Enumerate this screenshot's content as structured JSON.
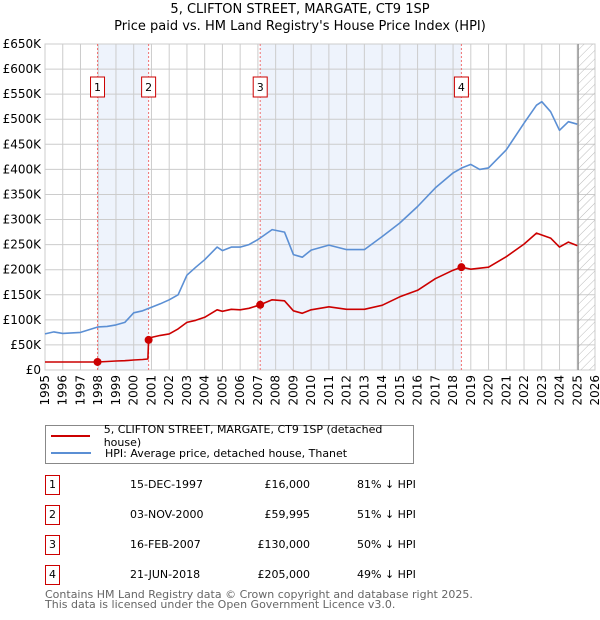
{
  "title": "5, CLIFTON STREET, MARGATE, CT9 1SP",
  "subtitle": "Price paid vs. HM Land Registry's House Price Index (HPI)",
  "colors": {
    "property": "#cc0000",
    "hpi": "#5b8fd4",
    "shade": "#eef3fc"
  },
  "chart_data": {
    "type": "line",
    "title": "5, CLIFTON STREET, MARGATE, CT9 1SP",
    "subtitle": "Price paid vs. HM Land Registry's House Price Index (HPI)",
    "xlim": [
      1995,
      2026
    ],
    "ylim": [
      0,
      650000
    ],
    "yticks": [
      0,
      50000,
      100000,
      150000,
      200000,
      250000,
      300000,
      350000,
      400000,
      450000,
      500000,
      550000,
      600000,
      650000
    ],
    "ytick_labels": [
      "£0",
      "£50K",
      "£100K",
      "£150K",
      "£200K",
      "£250K",
      "£300K",
      "£350K",
      "£400K",
      "£450K",
      "£500K",
      "£550K",
      "£600K",
      "£650K"
    ],
    "xtick_labels": [
      "1995",
      "1996",
      "1997",
      "1998",
      "1999",
      "2000",
      "2001",
      "2002",
      "2003",
      "2004",
      "2005",
      "2006",
      "2007",
      "2008",
      "2009",
      "2010",
      "2011",
      "2012",
      "2013",
      "2014",
      "2015",
      "2016",
      "2017",
      "2018",
      "2019",
      "2020",
      "2021",
      "2022",
      "2023",
      "2024",
      "2025",
      "2026"
    ],
    "grid": true,
    "forecast_hatch_from": 2025.05,
    "series": [
      {
        "name": "5, CLIFTON STREET, MARGATE, CT9 1SP (detached house)",
        "color": "#cc0000",
        "x": [
          1995,
          1996,
          1997,
          1997.96,
          1998.5,
          1999,
          1999.5,
          2000,
          2000.5,
          2000.8,
          2000.84,
          2001,
          2001.5,
          2002,
          2002.5,
          2003,
          2003.5,
          2004,
          2004.7,
          2005,
          2005.5,
          2006,
          2006.5,
          2007.13,
          2007.8,
          2008.5,
          2009,
          2009.5,
          2010,
          2011,
          2012,
          2013,
          2014,
          2015,
          2016,
          2017,
          2018,
          2018.47,
          2019,
          2020,
          2021,
          2022,
          2022.7,
          2023.5,
          2024,
          2024.5,
          2025
        ],
        "y": [
          16000,
          16000,
          16000,
          16000,
          17000,
          18000,
          18500,
          20000,
          21000,
          22000,
          60000,
          65000,
          69000,
          72000,
          82000,
          95000,
          99000,
          105000,
          120000,
          117000,
          121000,
          120000,
          123000,
          130000,
          140000,
          138000,
          118000,
          113000,
          120000,
          126000,
          121000,
          121000,
          129000,
          146000,
          159000,
          182000,
          199000,
          205000,
          201000,
          205000,
          226000,
          251000,
          273000,
          263000,
          245000,
          255000,
          248000
        ]
      },
      {
        "name": "HPI: Average price, detached house, Thanet",
        "color": "#5b8fd4",
        "x": [
          1995,
          1995.5,
          1996,
          1997,
          1998,
          1998.5,
          1999,
          1999.5,
          2000,
          2000.5,
          2001,
          2001.5,
          2002,
          2002.5,
          2003,
          2003.5,
          2004,
          2004.7,
          2005,
          2005.5,
          2006,
          2006.5,
          2007,
          2007.8,
          2008.5,
          2009,
          2009.5,
          2010,
          2011,
          2012,
          2013,
          2014,
          2015,
          2016,
          2017,
          2018,
          2018.5,
          2019,
          2019.5,
          2020,
          2021,
          2022,
          2022.7,
          2023,
          2023.5,
          2024,
          2024.5,
          2025
        ],
        "y": [
          72000,
          76000,
          73000,
          75000,
          86000,
          87000,
          90000,
          95000,
          114000,
          118000,
          125000,
          132000,
          140000,
          150000,
          189000,
          205000,
          220000,
          245000,
          238000,
          245000,
          245000,
          250000,
          260000,
          280000,
          275000,
          230000,
          225000,
          239000,
          249000,
          240000,
          240000,
          266000,
          293000,
          326000,
          363000,
          393000,
          403000,
          410000,
          400000,
          403000,
          439000,
          492000,
          528000,
          535000,
          515000,
          478000,
          495000,
          490000
        ]
      }
    ],
    "sales": [
      {
        "label": "1",
        "x": 1997.96,
        "y": 16000
      },
      {
        "label": "2",
        "x": 2000.84,
        "y": 59995
      },
      {
        "label": "3",
        "x": 2007.13,
        "y": 130000
      },
      {
        "label": "4",
        "x": 2018.47,
        "y": 205000
      }
    ]
  },
  "legend": {
    "property": "5, CLIFTON STREET, MARGATE, CT9 1SP (detached house)",
    "hpi": "HPI: Average price, detached house, Thanet"
  },
  "transactions": [
    {
      "num": "1",
      "date": "15-DEC-1997",
      "price": "£16,000",
      "hpi": "81% ↓ HPI"
    },
    {
      "num": "2",
      "date": "03-NOV-2000",
      "price": "£59,995",
      "hpi": "51% ↓ HPI"
    },
    {
      "num": "3",
      "date": "16-FEB-2007",
      "price": "£130,000",
      "hpi": "50% ↓ HPI"
    },
    {
      "num": "4",
      "date": "21-JUN-2018",
      "price": "£205,000",
      "hpi": "49% ↓ HPI"
    }
  ],
  "footer": {
    "line1": "Contains HM Land Registry data © Crown copyright and database right 2025.",
    "line2": "This data is licensed under the Open Government Licence v3.0."
  }
}
